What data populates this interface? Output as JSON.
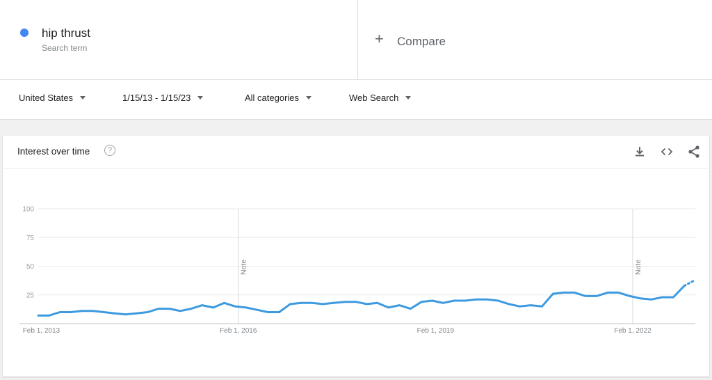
{
  "search_term": {
    "name": "hip thrust",
    "sublabel": "Search term",
    "color": "#4285f4"
  },
  "compare": {
    "plus": "+",
    "label": "Compare"
  },
  "filters": {
    "region": "United States",
    "date_range": "1/15/13 - 1/15/23",
    "category": "All categories",
    "search_type": "Web Search"
  },
  "interest_card": {
    "title": "Interest over time",
    "help_glyph": "?",
    "icons": [
      "help-icon",
      "download-icon",
      "embed-icon",
      "share-icon"
    ]
  },
  "chart_data": {
    "type": "line",
    "title": "",
    "xlabel": "",
    "ylabel": "",
    "ylim": [
      0,
      100
    ],
    "yticks": [
      25,
      50,
      75,
      100
    ],
    "xlim": [
      "2013-01-15",
      "2023-01-15"
    ],
    "xtick_labels": [
      {
        "label": "Feb 1, 2013",
        "date": "2013-02-01"
      },
      {
        "label": "Feb 1, 2016",
        "date": "2016-02-01"
      },
      {
        "label": "Feb 1, 2019",
        "date": "2019-02-01"
      },
      {
        "label": "Feb 1, 2022",
        "date": "2022-02-01"
      }
    ],
    "annotations": [
      {
        "text": "Note",
        "date": "2016-02-01"
      },
      {
        "text": "Note",
        "date": "2022-02-01"
      }
    ],
    "grid": true,
    "line_color": "#3d9ae0",
    "series": [
      {
        "values": [
          [
            "2013-01-15",
            7
          ],
          [
            "2013-03-15",
            7
          ],
          [
            "2013-05-15",
            10
          ],
          [
            "2013-07-15",
            10
          ],
          [
            "2013-09-15",
            11
          ],
          [
            "2013-11-15",
            11
          ],
          [
            "2014-01-15",
            10
          ],
          [
            "2014-03-15",
            9
          ],
          [
            "2014-05-15",
            8
          ],
          [
            "2014-07-15",
            9
          ],
          [
            "2014-09-15",
            10
          ],
          [
            "2014-11-15",
            13
          ],
          [
            "2015-01-15",
            13
          ],
          [
            "2015-03-15",
            11
          ],
          [
            "2015-05-15",
            13
          ],
          [
            "2015-07-15",
            16
          ],
          [
            "2015-09-15",
            14
          ],
          [
            "2015-11-15",
            18
          ],
          [
            "2016-01-15",
            15
          ],
          [
            "2016-03-15",
            14
          ],
          [
            "2016-05-15",
            12
          ],
          [
            "2016-07-15",
            10
          ],
          [
            "2016-09-15",
            10
          ],
          [
            "2016-11-15",
            17
          ],
          [
            "2017-01-15",
            18
          ],
          [
            "2017-03-15",
            18
          ],
          [
            "2017-05-15",
            17
          ],
          [
            "2017-07-15",
            18
          ],
          [
            "2017-09-15",
            19
          ],
          [
            "2017-11-15",
            19
          ],
          [
            "2018-01-15",
            17
          ],
          [
            "2018-03-15",
            18
          ],
          [
            "2018-05-15",
            14
          ],
          [
            "2018-07-15",
            16
          ],
          [
            "2018-09-15",
            13
          ],
          [
            "2018-11-15",
            19
          ],
          [
            "2019-01-15",
            20
          ],
          [
            "2019-03-15",
            18
          ],
          [
            "2019-05-15",
            20
          ],
          [
            "2019-07-15",
            20
          ],
          [
            "2019-09-15",
            21
          ],
          [
            "2019-11-15",
            21
          ],
          [
            "2020-01-15",
            20
          ],
          [
            "2020-03-15",
            17
          ],
          [
            "2020-05-15",
            15
          ],
          [
            "2020-07-15",
            16
          ],
          [
            "2020-09-15",
            15
          ],
          [
            "2020-11-15",
            26
          ],
          [
            "2021-01-15",
            27
          ],
          [
            "2021-03-15",
            27
          ],
          [
            "2021-05-15",
            24
          ],
          [
            "2021-07-15",
            24
          ],
          [
            "2021-09-15",
            27
          ],
          [
            "2021-11-15",
            27
          ],
          [
            "2022-01-15",
            24
          ],
          [
            "2022-03-15",
            22
          ],
          [
            "2022-05-15",
            21
          ],
          [
            "2022-07-15",
            23
          ],
          [
            "2022-09-15",
            23
          ],
          [
            "2022-11-15",
            33
          ],
          [
            "2023-01-15",
            38
          ]
        ]
      }
    ]
  }
}
